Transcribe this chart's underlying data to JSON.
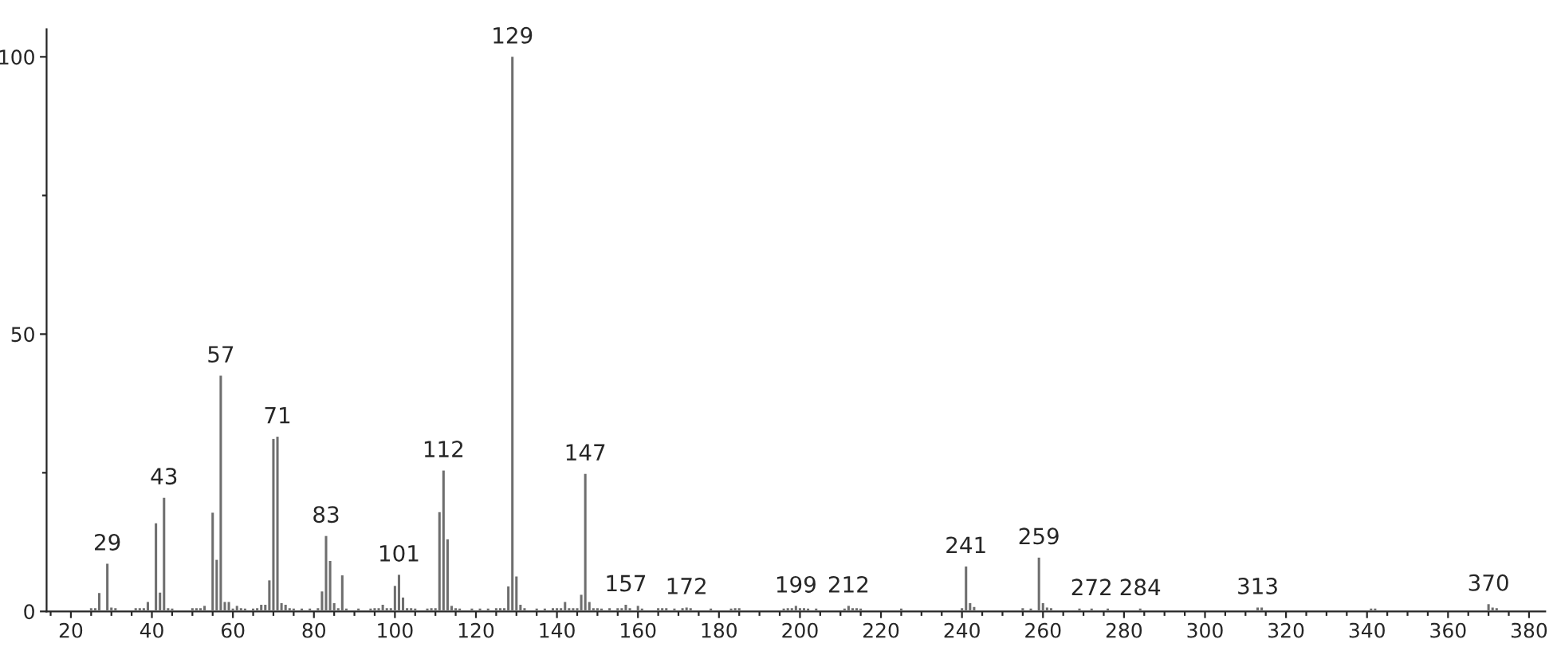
{
  "chart_data": {
    "type": "bar",
    "color": "#6e6e6e",
    "x": [
      25,
      26,
      27,
      29,
      30,
      31,
      36,
      37,
      38,
      39,
      41,
      42,
      43,
      44,
      45,
      50,
      51,
      52,
      53,
      55,
      56,
      57,
      58,
      59,
      60,
      61,
      62,
      63,
      65,
      66,
      67,
      68,
      69,
      70,
      71,
      72,
      73,
      74,
      75,
      77,
      79,
      81,
      82,
      83,
      84,
      85,
      86,
      87,
      88,
      91,
      94,
      95,
      96,
      97,
      98,
      99,
      100,
      101,
      102,
      103,
      104,
      105,
      108,
      109,
      110,
      111,
      112,
      113,
      114,
      115,
      116,
      119,
      121,
      123,
      125,
      126,
      127,
      128,
      129,
      130,
      131,
      132,
      135,
      137,
      139,
      140,
      141,
      142,
      143,
      144,
      145,
      146,
      147,
      148,
      149,
      150,
      151,
      153,
      155,
      156,
      157,
      158,
      160,
      161,
      165,
      166,
      167,
      169,
      171,
      172,
      173,
      178,
      183,
      184,
      185,
      196,
      197,
      198,
      199,
      200,
      201,
      202,
      204,
      211,
      212,
      213,
      214,
      215,
      225,
      240,
      241,
      242,
      243,
      255,
      257,
      259,
      260,
      261,
      262,
      269,
      272,
      276,
      284,
      313,
      314,
      341,
      342,
      370,
      371,
      372
    ],
    "values": [
      0.6,
      0.6,
      3.3,
      8.6,
      0.7,
      0.6,
      0.6,
      0.6,
      0.6,
      1.7,
      15.9,
      3.4,
      20.5,
      0.6,
      0.5,
      0.6,
      0.6,
      0.6,
      1.0,
      17.8,
      9.3,
      42.5,
      1.7,
      1.7,
      0.5,
      1.0,
      0.6,
      0.5,
      0.5,
      0.6,
      1.2,
      1.2,
      5.6,
      31.1,
      31.5,
      1.5,
      1.2,
      0.6,
      0.5,
      0.5,
      0.5,
      0.6,
      3.6,
      13.6,
      9.1,
      1.5,
      0.6,
      6.5,
      0.5,
      0.5,
      0.5,
      0.6,
      0.6,
      1.2,
      0.6,
      0.6,
      4.6,
      6.6,
      2.5,
      0.6,
      0.6,
      0.5,
      0.5,
      0.6,
      0.6,
      17.9,
      25.4,
      13.0,
      1.0,
      0.6,
      0.5,
      0.5,
      0.5,
      0.5,
      0.6,
      0.6,
      0.6,
      4.5,
      100,
      6.3,
      1.2,
      0.6,
      0.5,
      0.5,
      0.6,
      0.6,
      0.6,
      1.7,
      0.6,
      0.6,
      0.6,
      3.0,
      24.8,
      1.7,
      0.6,
      0.6,
      0.5,
      0.6,
      0.6,
      0.6,
      1.2,
      0.6,
      1.0,
      0.5,
      0.6,
      0.6,
      0.6,
      0.5,
      0.6,
      0.7,
      0.6,
      0.5,
      0.5,
      0.6,
      0.6,
      0.5,
      0.6,
      0.6,
      1.0,
      0.6,
      0.6,
      0.5,
      0.5,
      0.5,
      1.0,
      0.6,
      0.6,
      0.5,
      0.5,
      0.6,
      8.1,
      1.5,
      0.8,
      0.6,
      0.5,
      9.7,
      1.5,
      0.7,
      0.6,
      0.5,
      0.5,
      0.5,
      0.5,
      0.7,
      0.7,
      0.5,
      0.5,
      1.3,
      0.7,
      0.6
    ],
    "xlim": [
      14,
      384
    ],
    "ylim": [
      0,
      105
    ],
    "xticks": [
      {
        "value": 15,
        "label": null
      },
      20,
      {
        "value": 25,
        "label": null
      },
      {
        "value": 30,
        "label": null
      },
      {
        "value": 35,
        "label": null
      },
      40,
      {
        "value": 45,
        "label": null
      },
      {
        "value": 50,
        "label": null
      },
      {
        "value": 55,
        "label": null
      },
      60,
      {
        "value": 65,
        "label": null
      },
      {
        "value": 70,
        "label": null
      },
      {
        "value": 75,
        "label": null
      },
      80,
      {
        "value": 85,
        "label": null
      },
      {
        "value": 90,
        "label": null
      },
      {
        "value": 95,
        "label": null
      },
      100,
      {
        "value": 105,
        "label": null
      },
      {
        "value": 110,
        "label": null
      },
      {
        "value": 115,
        "label": null
      },
      120,
      {
        "value": 125,
        "label": null
      },
      {
        "value": 130,
        "label": null
      },
      {
        "value": 135,
        "label": null
      },
      140,
      {
        "value": 145,
        "label": null
      },
      {
        "value": 150,
        "label": null
      },
      {
        "value": 155,
        "label": null
      },
      160,
      {
        "value": 165,
        "label": null
      },
      {
        "value": 170,
        "label": null
      },
      {
        "value": 175,
        "label": null
      },
      180,
      {
        "value": 185,
        "label": null
      },
      {
        "value": 190,
        "label": null
      },
      {
        "value": 195,
        "label": null
      },
      200,
      {
        "value": 205,
        "label": null
      },
      {
        "value": 210,
        "label": null
      },
      {
        "value": 215,
        "label": null
      },
      220,
      {
        "value": 225,
        "label": null
      },
      {
        "value": 230,
        "label": null
      },
      {
        "value": 235,
        "label": null
      },
      240,
      {
        "value": 245,
        "label": null
      },
      {
        "value": 250,
        "label": null
      },
      {
        "value": 255,
        "label": null
      },
      260,
      {
        "value": 265,
        "label": null
      },
      {
        "value": 270,
        "label": null
      },
      {
        "value": 275,
        "label": null
      },
      280,
      {
        "value": 285,
        "label": null
      },
      {
        "value": 290,
        "label": null
      },
      {
        "value": 295,
        "label": null
      },
      300,
      {
        "value": 305,
        "label": null
      },
      {
        "value": 310,
        "label": null
      },
      {
        "value": 315,
        "label": null
      },
      320,
      {
        "value": 325,
        "label": null
      },
      {
        "value": 330,
        "label": null
      },
      {
        "value": 335,
        "label": null
      },
      340,
      {
        "value": 345,
        "label": null
      },
      {
        "value": 350,
        "label": null
      },
      {
        "value": 355,
        "label": null
      },
      360,
      {
        "value": 365,
        "label": null
      },
      {
        "value": 370,
        "label": null
      },
      {
        "value": 375,
        "label": null
      },
      380
    ],
    "yticks": [
      0,
      {
        "value": 25,
        "label": null
      },
      50,
      {
        "value": 75,
        "label": null
      },
      100
    ],
    "grid": false,
    "annotations": [
      {
        "text": "29",
        "x": 29,
        "y": 8.6
      },
      {
        "text": "43",
        "x": 43,
        "y": 20.5
      },
      {
        "text": "57",
        "x": 57,
        "y": 42.5
      },
      {
        "text": "71",
        "x": 71,
        "y": 31.5
      },
      {
        "text": "83",
        "x": 83,
        "y": 13.6
      },
      {
        "text": "101",
        "x": 101,
        "y": 6.6
      },
      {
        "text": "112",
        "x": 112,
        "y": 25.4
      },
      {
        "text": "129",
        "x": 129,
        "y": 100
      },
      {
        "text": "147",
        "x": 147,
        "y": 24.8
      },
      {
        "text": "157",
        "x": 157,
        "y": 1.2
      },
      {
        "text": "172",
        "x": 172,
        "y": 0.7
      },
      {
        "text": "199",
        "x": 199,
        "y": 1.0
      },
      {
        "text": "212",
        "x": 212,
        "y": 1.0
      },
      {
        "text": "241",
        "x": 241,
        "y": 8.1
      },
      {
        "text": "259",
        "x": 259,
        "y": 9.7
      },
      {
        "text": "272",
        "x": 272,
        "y": 0.5
      },
      {
        "text": "284",
        "x": 284,
        "y": 0.5
      },
      {
        "text": "313",
        "x": 313,
        "y": 0.7
      },
      {
        "text": "370",
        "x": 370,
        "y": 1.3
      }
    ]
  }
}
